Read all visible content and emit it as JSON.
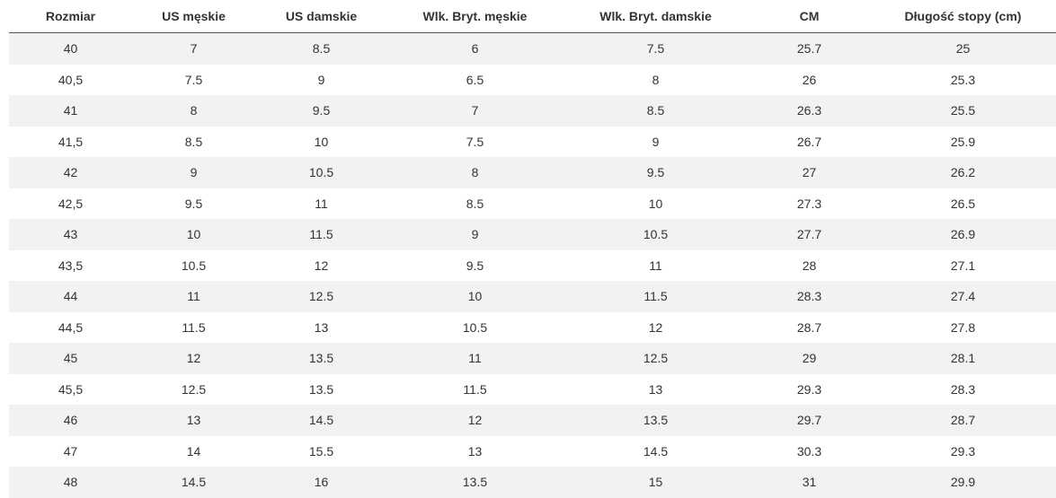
{
  "table": {
    "header": [
      "Rozmiar",
      "US męskie",
      "US damskie",
      "Wlk. Bryt. męskie",
      "Wlk. Bryt. damskie",
      "CM",
      "Długość stopy (cm)"
    ],
    "rows": [
      [
        "40",
        "7",
        "8.5",
        "6",
        "7.5",
        "25.7",
        "25"
      ],
      [
        "40,5",
        "7.5",
        "9",
        "6.5",
        "8",
        "26",
        "25.3"
      ],
      [
        "41",
        "8",
        "9.5",
        "7",
        "8.5",
        "26.3",
        "25.5"
      ],
      [
        "41,5",
        "8.5",
        "10",
        "7.5",
        "9",
        "26.7",
        "25.9"
      ],
      [
        "42",
        "9",
        "10.5",
        "8",
        "9.5",
        "27",
        "26.2"
      ],
      [
        "42,5",
        "9.5",
        "11",
        "8.5",
        "10",
        "27.3",
        "26.5"
      ],
      [
        "43",
        "10",
        "11.5",
        "9",
        "10.5",
        "27.7",
        "26.9"
      ],
      [
        "43,5",
        "10.5",
        "12",
        "9.5",
        "11",
        "28",
        "27.1"
      ],
      [
        "44",
        "11",
        "12.5",
        "10",
        "11.5",
        "28.3",
        "27.4"
      ],
      [
        "44,5",
        "11.5",
        "13",
        "10.5",
        "12",
        "28.7",
        "27.8"
      ],
      [
        "45",
        "12",
        "13.5",
        "11",
        "12.5",
        "29",
        "28.1"
      ],
      [
        "45,5",
        "12.5",
        "13.5",
        "11.5",
        "13",
        "29.3",
        "28.3"
      ],
      [
        "46",
        "13",
        "14.5",
        "12",
        "13.5",
        "29.7",
        "28.7"
      ],
      [
        "47",
        "14",
        "15.5",
        "13",
        "14.5",
        "30.3",
        "29.3"
      ],
      [
        "48",
        "14.5",
        "16",
        "13.5",
        "15",
        "31",
        "29.9"
      ]
    ]
  }
}
